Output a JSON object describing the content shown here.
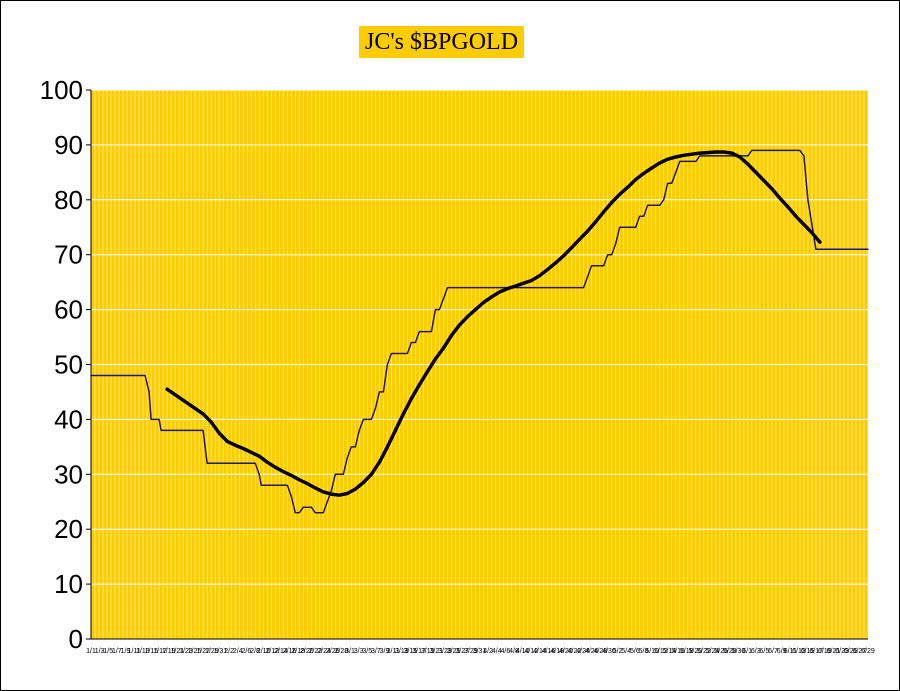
{
  "chart_data": {
    "type": "line",
    "title": "JC's $BPGOLD",
    "xlabel": "",
    "ylabel": "",
    "ylim": [
      0,
      100
    ],
    "yticks": [
      "0",
      "10",
      "20",
      "30",
      "40",
      "50",
      "60",
      "70",
      "80",
      "90",
      "100"
    ],
    "grid": true,
    "plot_background": "#ffcc00",
    "gridline_color": "#ffffff",
    "x_categories": [
      "1/1",
      "1/3",
      "1/5",
      "1/7",
      "1/9",
      "1/11",
      "1/13",
      "1/15",
      "1/17",
      "1/19",
      "1/21",
      "1/23",
      "1/25",
      "1/27",
      "1/29",
      "1/31",
      "2/2",
      "2/4",
      "2/6",
      "2/8",
      "2/10",
      "2/12",
      "2/14",
      "2/16",
      "2/18",
      "2/20",
      "2/22",
      "2/24",
      "2/26",
      "2/28",
      "3/1",
      "3/3",
      "3/5",
      "3/7",
      "3/9",
      "3/11",
      "3/13",
      "3/15",
      "3/17",
      "3/19",
      "3/21",
      "3/23",
      "3/25",
      "3/27",
      "3/29",
      "3/31",
      "4/2",
      "4/4",
      "4/6",
      "4/8",
      "4/10",
      "4/12",
      "4/14",
      "4/16",
      "4/18",
      "4/20",
      "4/22",
      "4/24",
      "4/26",
      "4/28",
      "4/30",
      "5/2",
      "5/4",
      "5/6",
      "5/8",
      "5/10",
      "5/12",
      "5/14",
      "5/16",
      "5/18",
      "5/20",
      "5/22",
      "5/24",
      "5/26",
      "5/28",
      "5/30",
      "6/1",
      "6/3",
      "6/5",
      "6/7",
      "6/9",
      "6/11",
      "6/13",
      "6/15",
      "6/17",
      "6/19",
      "6/21",
      "6/23",
      "6/25",
      "6/27",
      "6/29"
    ],
    "series": [
      {
        "color": "#1a1a6e",
        "width": 1.5,
        "points": [
          [
            0,
            48
          ],
          [
            13.5,
            48
          ],
          [
            14.5,
            45
          ],
          [
            15,
            40
          ],
          [
            17,
            40
          ],
          [
            17.5,
            38
          ],
          [
            28,
            38
          ],
          [
            29,
            32
          ],
          [
            41,
            32
          ],
          [
            42,
            30
          ],
          [
            42.5,
            28
          ],
          [
            49,
            28
          ],
          [
            50,
            26
          ],
          [
            51,
            23
          ],
          [
            52,
            23
          ],
          [
            53,
            24
          ],
          [
            55,
            24
          ],
          [
            56,
            23
          ],
          [
            58,
            23
          ],
          [
            60,
            27
          ],
          [
            61,
            30
          ],
          [
            63,
            30
          ],
          [
            64,
            33
          ],
          [
            65,
            35
          ],
          [
            66,
            35
          ],
          [
            67,
            38
          ],
          [
            68,
            40
          ],
          [
            70,
            40
          ],
          [
            71,
            42
          ],
          [
            72,
            45
          ],
          [
            73,
            45
          ],
          [
            74,
            50
          ],
          [
            75,
            52
          ],
          [
            79,
            52
          ],
          [
            80,
            54
          ],
          [
            81,
            54
          ],
          [
            82,
            56
          ],
          [
            85,
            56
          ],
          [
            86,
            60
          ],
          [
            87,
            60
          ],
          [
            88,
            62
          ],
          [
            89,
            64
          ],
          [
            123,
            64
          ],
          [
            124,
            66
          ],
          [
            125,
            68
          ],
          [
            128,
            68
          ],
          [
            129,
            70
          ],
          [
            130,
            70
          ],
          [
            131,
            72
          ],
          [
            132,
            75
          ],
          [
            136,
            75
          ],
          [
            137,
            77
          ],
          [
            138,
            77
          ],
          [
            139,
            79
          ],
          [
            142,
            79
          ],
          [
            143,
            80
          ],
          [
            144,
            83
          ],
          [
            145,
            83
          ],
          [
            146,
            85
          ],
          [
            147,
            87
          ],
          [
            151,
            87
          ],
          [
            152,
            88
          ],
          [
            164,
            88
          ],
          [
            165,
            89
          ],
          [
            177,
            89
          ],
          [
            178,
            88
          ],
          [
            179,
            80
          ],
          [
            181,
            71
          ],
          [
            194,
            71
          ]
        ]
      },
      {
        "color": "#000000",
        "width": 3.5,
        "points": [
          [
            19,
            45.5
          ],
          [
            22,
            44
          ],
          [
            25,
            42.5
          ],
          [
            28,
            41
          ],
          [
            30,
            39.5
          ],
          [
            32,
            37.5
          ],
          [
            34,
            36
          ],
          [
            36,
            35.3
          ],
          [
            38,
            34.7
          ],
          [
            40,
            34
          ],
          [
            42,
            33.3
          ],
          [
            44,
            32.2
          ],
          [
            46,
            31.3
          ],
          [
            48,
            30.5
          ],
          [
            50,
            29.8
          ],
          [
            52,
            29
          ],
          [
            54,
            28.3
          ],
          [
            56,
            27.5
          ],
          [
            58,
            26.8
          ],
          [
            60,
            26.4
          ],
          [
            62,
            26.2
          ],
          [
            64,
            26.5
          ],
          [
            66,
            27.3
          ],
          [
            68,
            28.5
          ],
          [
            70,
            30
          ],
          [
            72,
            32.2
          ],
          [
            74,
            35
          ],
          [
            76,
            38
          ],
          [
            78,
            41
          ],
          [
            80,
            43.8
          ],
          [
            82,
            46.3
          ],
          [
            84,
            48.7
          ],
          [
            86,
            51
          ],
          [
            88,
            53
          ],
          [
            90,
            55.3
          ],
          [
            92,
            57.2
          ],
          [
            94,
            58.7
          ],
          [
            96,
            60
          ],
          [
            98,
            61.3
          ],
          [
            100,
            62.3
          ],
          [
            102,
            63.2
          ],
          [
            104,
            63.8
          ],
          [
            106,
            64.3
          ],
          [
            108,
            64.8
          ],
          [
            110,
            65.3
          ],
          [
            112,
            66.2
          ],
          [
            114,
            67.3
          ],
          [
            116,
            68.5
          ],
          [
            118,
            69.8
          ],
          [
            120,
            71.3
          ],
          [
            122,
            72.8
          ],
          [
            124,
            74.3
          ],
          [
            126,
            76
          ],
          [
            128,
            77.8
          ],
          [
            130,
            79.5
          ],
          [
            132,
            81
          ],
          [
            134,
            82.3
          ],
          [
            136,
            83.7
          ],
          [
            138,
            84.8
          ],
          [
            140,
            85.8
          ],
          [
            142,
            86.7
          ],
          [
            144,
            87.4
          ],
          [
            146,
            87.8
          ],
          [
            148,
            88.1
          ],
          [
            150,
            88.3
          ],
          [
            152,
            88.5
          ],
          [
            154,
            88.6
          ],
          [
            156,
            88.7
          ],
          [
            158,
            88.7
          ],
          [
            160,
            88.5
          ],
          [
            162,
            87.8
          ],
          [
            164,
            86.5
          ],
          [
            166,
            85
          ],
          [
            168,
            83.5
          ],
          [
            170,
            82
          ],
          [
            172,
            80.3
          ],
          [
            174,
            78.7
          ],
          [
            176,
            77
          ],
          [
            178,
            75.5
          ],
          [
            180,
            74
          ],
          [
            182,
            72.3
          ]
        ]
      }
    ]
  }
}
